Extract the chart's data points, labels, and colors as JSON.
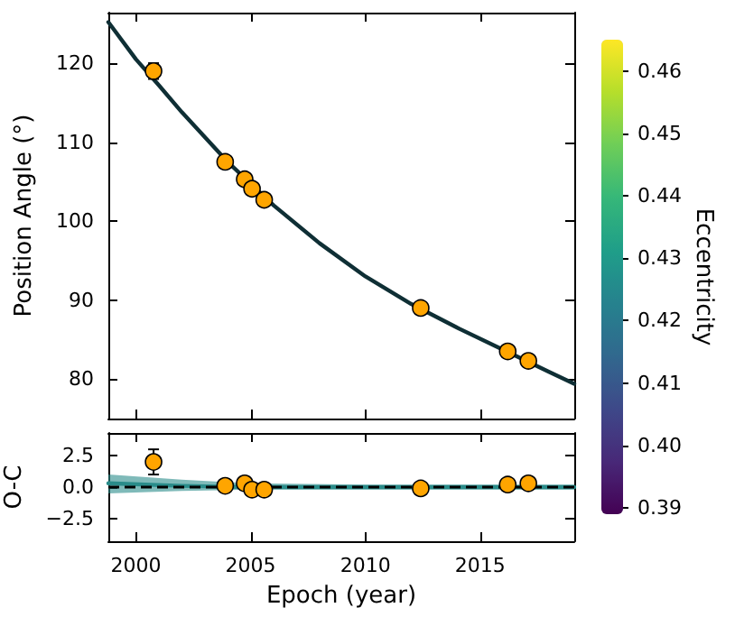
{
  "chart_data": [
    {
      "type": "scatter",
      "ylabel": "Position Angle (°)",
      "xlim": [
        1998.8,
        2019.1
      ],
      "xticks": [
        2000,
        2005,
        2010,
        2015
      ],
      "ylim": [
        75,
        126.4
      ],
      "yticks": [
        80,
        90,
        100,
        110,
        120
      ],
      "tick_labels": "y",
      "clabel": "Eccentricity",
      "clim": [
        0.389,
        0.465
      ],
      "cticks": [
        0.39,
        {
          "value": 0.4,
          "label": "0.40"
        },
        0.41,
        0.42,
        0.43,
        0.44,
        0.45,
        0.46
      ],
      "series": [
        {
          "type": "line",
          "marker": "none",
          "color": "#0f2f35",
          "x": [
            1998.8,
            2000,
            2001,
            2002,
            2004,
            2006,
            2008,
            2010,
            2012,
            2014,
            2016,
            2018,
            2019.1
          ],
          "values": [
            125.2,
            120.5,
            117.2,
            113.8,
            107.5,
            102,
            97.2,
            93,
            89.5,
            86.5,
            83.7,
            80.9,
            79.4
          ]
        },
        {
          "marker": "circle",
          "color": "#ffa500",
          "x": [
            2000.77,
            2003.89,
            2004.74,
            2005.06,
            2005.59,
            2012.41,
            2016.2,
            2017.1
          ],
          "values": [
            119.0,
            107.5,
            105.3,
            104.1,
            102.7,
            89.0,
            83.5,
            82.3
          ],
          "errors": [
            1.0,
            null,
            0.5,
            null,
            null,
            null,
            null,
            null
          ]
        }
      ]
    },
    {
      "type": "scatter",
      "xlabel": "Epoch (year)",
      "ylabel": "O-C",
      "xlim": [
        1998.8,
        2019.1
      ],
      "xticks": [
        2000,
        2005,
        2010,
        2015
      ],
      "ylim": [
        -4.3,
        4.3
      ],
      "yticks": [
        {
          "value": -2.5,
          "label": "−2.5"
        },
        {
          "value": 0,
          "label": "0.0"
        },
        2.5
      ],
      "ref_lines": [
        {
          "axis": "y",
          "value": 0,
          "color": "#000000",
          "line_style": "dashed"
        }
      ],
      "series": [
        {
          "type": "line",
          "marker": "none",
          "color": "#2a8c8a",
          "x": [
            1998.8,
            2002,
            2005,
            2010,
            2019.1
          ],
          "values": [
            0.3,
            0.1,
            0,
            0,
            0
          ],
          "lower": [
            -0.5,
            -0.3,
            -0.2,
            -0.2,
            -0.2
          ],
          "upper": [
            1.0,
            0.6,
            0.3,
            0.2,
            0.2
          ]
        },
        {
          "marker": "circle",
          "color": "#ffa500",
          "x": [
            2000.77,
            2003.89,
            2004.74,
            2005.06,
            2005.59,
            2012.41,
            2016.2,
            2017.1
          ],
          "values": [
            2.0,
            0.1,
            0.3,
            -0.2,
            -0.2,
            -0.1,
            0.2,
            0.3
          ],
          "errors": [
            1.0,
            null,
            0.5,
            null,
            null,
            null,
            null,
            null
          ]
        }
      ]
    }
  ]
}
